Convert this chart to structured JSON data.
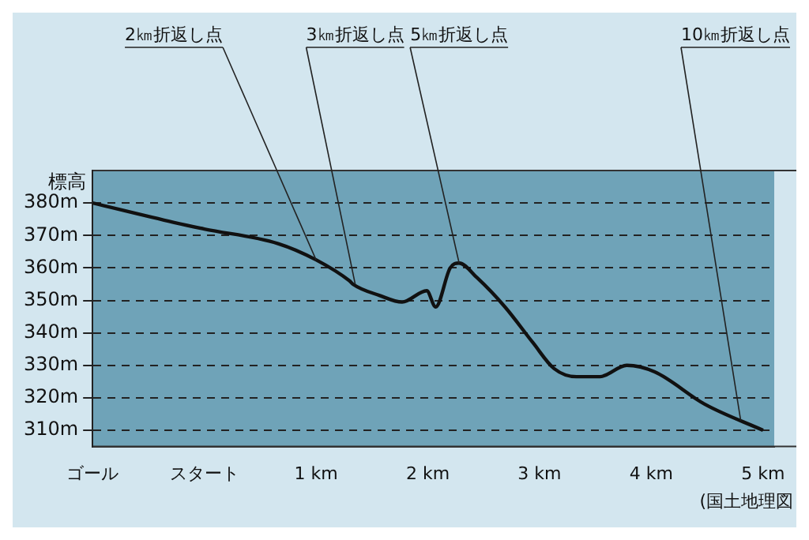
{
  "chart_data": {
    "type": "line",
    "ylabel": "標高",
    "x": [
      -1,
      -0.27,
      0,
      0.66,
      1,
      1.3,
      1.33,
      1.57,
      1.77,
      1.99,
      2.07,
      2.2,
      2.28,
      2.44,
      2.69,
      2.94,
      3.13,
      3.33,
      3.54,
      3.78,
      4.03,
      4.48,
      5
    ],
    "series": [
      {
        "color": "#111111",
        "values": [
          380,
          374,
          372,
          367.5,
          362.5,
          356,
          355,
          351.5,
          349.5,
          353,
          348,
          360,
          361.5,
          357,
          348,
          337,
          329,
          326.5,
          326.5,
          330,
          328,
          318,
          310
        ]
      }
    ],
    "xlim": [
      -1,
      5.1
    ],
    "xticks": [
      {
        "value": -1,
        "label": "ゴール"
      },
      {
        "value": 0,
        "label": "スタート"
      },
      {
        "value": 1,
        "label": "1 km"
      },
      {
        "value": 2,
        "label": "2 km"
      },
      {
        "value": 3,
        "label": "3 km"
      },
      {
        "value": 4,
        "label": "4 km"
      },
      {
        "value": 5,
        "label": "5 km"
      }
    ],
    "ylim": [
      305,
      390
    ],
    "yticks": [
      {
        "value": 310,
        "label": "310m"
      },
      {
        "value": 320,
        "label": "320m"
      },
      {
        "value": 330,
        "label": "330m"
      },
      {
        "value": 340,
        "label": "340m"
      },
      {
        "value": 350,
        "label": "350m"
      },
      {
        "value": 360,
        "label": "360m"
      },
      {
        "value": 370,
        "label": "370m"
      },
      {
        "value": 380,
        "label": "380m"
      }
    ],
    "grid": "y",
    "line_style": "solid",
    "marker": "none",
    "legend": false,
    "annotations": [
      {
        "text": "2㎞折返し点",
        "x": 1,
        "y": 362.5
      },
      {
        "text": "3㎞折返し点",
        "x": 1.35,
        "y": 355
      },
      {
        "text": "5㎞折返し点",
        "x": 2.28,
        "y": 361.5
      },
      {
        "text": "10㎞折返し点",
        "x": 4.8,
        "y": 313
      },
      "(国土地理図"
    ]
  }
}
